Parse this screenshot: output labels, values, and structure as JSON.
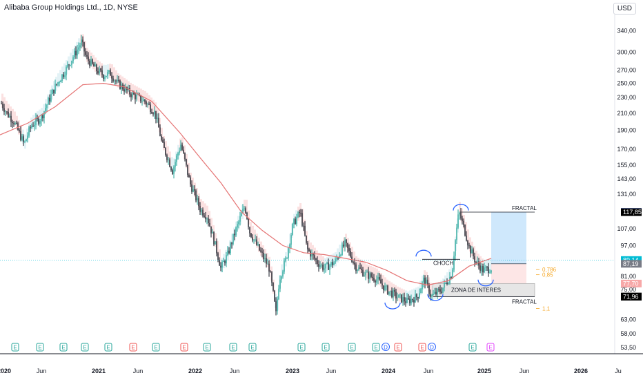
{
  "header": {
    "title": "Alibaba Group Holdings Ltd., 1D, NYSE",
    "currency": "USD"
  },
  "chart_data": {
    "type": "line",
    "x_labels": [
      "2020",
      "Jun",
      "2021",
      "Jun",
      "2022",
      "Jun",
      "2023",
      "Jun",
      "2024",
      "Jun",
      "2025",
      "Jun",
      "2026",
      "Ju"
    ],
    "y_ticks": [
      "340,00",
      "300,00",
      "270,00",
      "250,00",
      "230,00",
      "210,00",
      "190,00",
      "170,00",
      "155,00",
      "143,00",
      "131,00",
      "107,00",
      "97,00",
      "81,00",
      "75,00",
      "63,00",
      "58,00",
      "53,50"
    ],
    "y_scale": "log",
    "ylim": [
      52,
      375
    ],
    "price_series": [
      [
        0,
        225
      ],
      [
        10,
        210
      ],
      [
        20,
        200
      ],
      [
        35,
        175
      ],
      [
        45,
        195
      ],
      [
        60,
        205
      ],
      [
        80,
        245
      ],
      [
        95,
        270
      ],
      [
        110,
        300
      ],
      [
        118,
        318
      ],
      [
        125,
        290
      ],
      [
        140,
        270
      ],
      [
        150,
        262
      ],
      [
        160,
        265
      ],
      [
        170,
        250
      ],
      [
        190,
        235
      ],
      [
        210,
        225
      ],
      [
        225,
        210
      ],
      [
        235,
        175
      ],
      [
        250,
        150
      ],
      [
        262,
        175
      ],
      [
        275,
        140
      ],
      [
        290,
        120
      ],
      [
        300,
        115
      ],
      [
        310,
        100
      ],
      [
        320,
        85
      ],
      [
        330,
        92
      ],
      [
        345,
        110
      ],
      [
        355,
        122
      ],
      [
        362,
        105
      ],
      [
        375,
        95
      ],
      [
        390,
        85
      ],
      [
        400,
        65
      ],
      [
        405,
        80
      ],
      [
        415,
        90
      ],
      [
        425,
        110
      ],
      [
        435,
        118
      ],
      [
        445,
        95
      ],
      [
        460,
        88
      ],
      [
        470,
        85
      ],
      [
        485,
        88
      ],
      [
        500,
        98
      ],
      [
        515,
        86
      ],
      [
        530,
        82
      ],
      [
        545,
        80
      ],
      [
        560,
        75
      ],
      [
        575,
        72
      ],
      [
        590,
        70
      ],
      [
        605,
        72
      ],
      [
        615,
        80
      ],
      [
        625,
        72
      ],
      [
        640,
        75
      ],
      [
        655,
        82
      ],
      [
        665,
        118
      ],
      [
        672,
        108
      ],
      [
        680,
        96
      ],
      [
        690,
        88
      ],
      [
        700,
        84
      ],
      [
        712,
        85
      ]
    ],
    "moving_average": [
      [
        0,
        185
      ],
      [
        40,
        198
      ],
      [
        80,
        218
      ],
      [
        120,
        248
      ],
      [
        150,
        250
      ],
      [
        180,
        245
      ],
      [
        220,
        225
      ],
      [
        260,
        188
      ],
      [
        290,
        162
      ],
      [
        320,
        140
      ],
      [
        350,
        118
      ],
      [
        380,
        106
      ],
      [
        410,
        97
      ],
      [
        440,
        93
      ],
      [
        470,
        92
      ],
      [
        500,
        90
      ],
      [
        530,
        88
      ],
      [
        560,
        84
      ],
      [
        590,
        79
      ],
      [
        620,
        77
      ],
      [
        650,
        79
      ],
      [
        680,
        86
      ],
      [
        712,
        90
      ]
    ],
    "earnings_markers": [
      {
        "x": 22,
        "type": "E",
        "color": "#26a69a"
      },
      {
        "x": 58,
        "type": "E",
        "color": "#26a69a"
      },
      {
        "x": 92,
        "type": "E",
        "color": "#26a69a"
      },
      {
        "x": 123,
        "type": "E",
        "color": "#26a69a"
      },
      {
        "x": 157,
        "type": "E",
        "color": "#26a69a"
      },
      {
        "x": 193,
        "type": "E",
        "color": "#ef5350"
      },
      {
        "x": 226,
        "type": "E",
        "color": "#26a69a"
      },
      {
        "x": 267,
        "type": "E",
        "color": "#ef5350"
      },
      {
        "x": 300,
        "type": "E",
        "color": "#26a69a"
      },
      {
        "x": 338,
        "type": "E",
        "color": "#26a69a"
      },
      {
        "x": 366,
        "type": "E",
        "color": "#26a69a"
      },
      {
        "x": 437,
        "type": "E",
        "color": "#26a69a"
      },
      {
        "x": 472,
        "type": "E",
        "color": "#26a69a"
      },
      {
        "x": 510,
        "type": "E",
        "color": "#26a69a"
      },
      {
        "x": 545,
        "type": "E",
        "color": "#26a69a"
      },
      {
        "x": 559,
        "type": "D",
        "color": "#2962ff"
      },
      {
        "x": 577,
        "type": "E",
        "color": "#ef5350"
      },
      {
        "x": 612,
        "type": "E",
        "color": "#ef5350"
      },
      {
        "x": 626,
        "type": "D",
        "color": "#2962ff"
      },
      {
        "x": 685,
        "type": "E",
        "color": "#26a69a"
      },
      {
        "x": 711,
        "type": "E",
        "color": "#e040fb"
      }
    ],
    "price_badges": [
      {
        "value": "118,01",
        "price": 118.01,
        "bg": "#2962ff",
        "fg": "#ffffff"
      },
      {
        "value": "117,89",
        "price": 117.89,
        "bg": "#000000",
        "fg": "#ffffff"
      },
      {
        "value": "117,85",
        "price": 117.85,
        "bg": "#000000",
        "fg": "#ffffff"
      },
      {
        "value": "89,14",
        "price": 89.14,
        "bg": "#00bcd4",
        "fg": "#ffffff"
      },
      {
        "value": "87,19",
        "price": 87.19,
        "bg": "#787b86",
        "fg": "#ffffff"
      },
      {
        "value": "77,70",
        "price": 77.7,
        "bg": "#f7a8a8",
        "fg": "#ffffff"
      },
      {
        "value": "72,04",
        "price": 72.04,
        "bg": "#000000",
        "fg": "#ffffff"
      },
      {
        "value": "71,96",
        "price": 71.96,
        "bg": "#000000",
        "fg": "#ffffff"
      }
    ],
    "annotations": {
      "fractal_top": "FRACTAL",
      "fractal_bottom": "FRACTAL",
      "choch": "CHOCH",
      "zone": "ZONA DE INTERES",
      "fib_0786": "0,786",
      "fib_085": "0,85",
      "fib_11": "1,1"
    },
    "grid": false,
    "colors": {
      "up": "#26a69a",
      "down": "#131722",
      "ma": "#e57373",
      "cloud_pink": "#f8c8c8",
      "cloud_blue": "#cce8ef",
      "target_zone": "#bbdefb",
      "stop_zone": "#fde0e0",
      "fib": "#f5a623"
    }
  }
}
